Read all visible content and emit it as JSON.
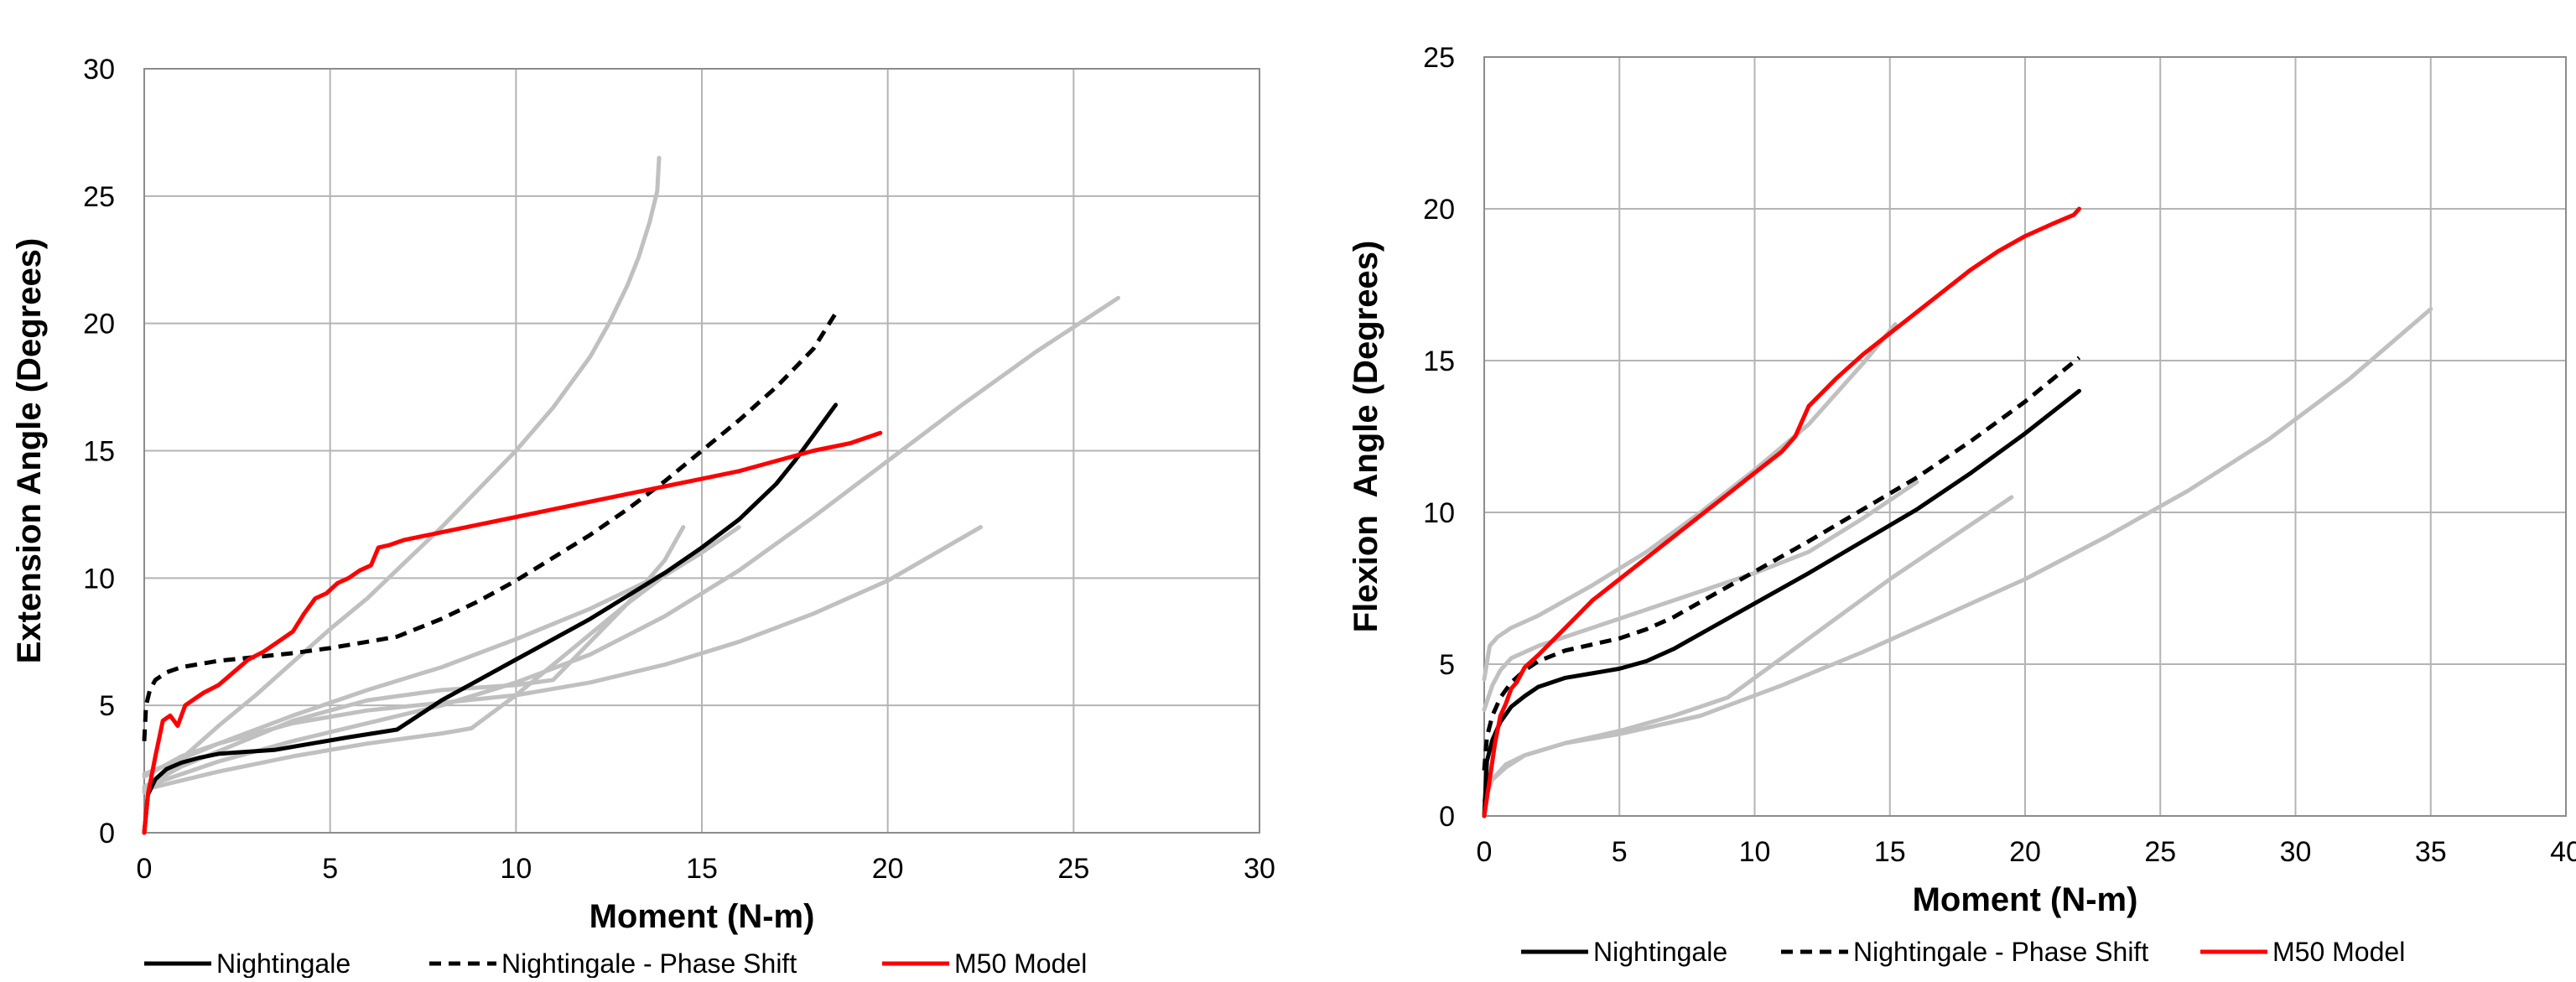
{
  "colors": {
    "nightingale": "#000000",
    "phase_shift": "#000000",
    "m50": "#ff0000",
    "specimens": "#c0c0c0",
    "grid": "#b4b4b4"
  },
  "chart_data": [
    {
      "type": "line",
      "xlabel": "Moment (N-m)",
      "ylabel": "Extension Angle (Degrees)",
      "xlim": [
        0,
        30
      ],
      "ylim": [
        0,
        30
      ],
      "x_ticks": [
        "0",
        "5",
        "10",
        "15",
        "20",
        "25",
        "30"
      ],
      "y_ticks": [
        "0",
        "5",
        "10",
        "15",
        "20",
        "25",
        "30"
      ],
      "grid": true,
      "legend_position": "bottom",
      "legend": [
        "Nightingale",
        "Nightingale - Phase Shift",
        "M50 Model"
      ],
      "series": [
        {
          "name": "Nightingale",
          "style": "solid",
          "color": "#000000",
          "x": [
            0,
            0.1,
            0.3,
            0.6,
            1,
            1.5,
            2,
            2.5,
            3.5,
            4.5,
            5.5,
            6.8,
            8,
            9,
            10,
            11,
            12,
            13,
            14,
            15,
            16,
            17,
            17.5,
            18,
            18.6
          ],
          "y": [
            0,
            1.5,
            2.1,
            2.5,
            2.75,
            2.95,
            3.1,
            3.15,
            3.25,
            3.5,
            3.75,
            4.05,
            5.2,
            6,
            6.8,
            7.6,
            8.4,
            9.3,
            10.2,
            11.2,
            12.3,
            13.7,
            14.6,
            15.6,
            16.8
          ]
        },
        {
          "name": "Nightingale - Phase Shift",
          "style": "dashed",
          "color": "#000000",
          "x": [
            0,
            0.05,
            0.15,
            0.3,
            0.6,
            1,
            2,
            3,
            4,
            5,
            6,
            6.8,
            8,
            9,
            10,
            11,
            12,
            13,
            14,
            15,
            16,
            17,
            18,
            18.6
          ],
          "y": [
            3.6,
            5.0,
            5.6,
            6.0,
            6.3,
            6.5,
            6.75,
            6.9,
            7.05,
            7.25,
            7.5,
            7.7,
            8.4,
            9.1,
            9.9,
            10.8,
            11.7,
            12.7,
            13.8,
            15.0,
            16.2,
            17.5,
            19.0,
            20.4
          ]
        },
        {
          "name": "M50 Model",
          "style": "solid",
          "color": "#ff0000",
          "x": [
            0,
            0.1,
            0.3,
            0.5,
            0.7,
            0.9,
            1.1,
            1.3,
            1.6,
            2.0,
            2.4,
            2.8,
            3.2,
            3.6,
            4.0,
            4.3,
            4.6,
            4.9,
            5.2,
            5.5,
            5.8,
            6.1,
            6.3,
            6.6,
            7,
            8,
            9,
            10,
            11,
            12,
            13,
            14,
            15,
            16,
            17,
            18,
            19,
            19.8
          ],
          "y": [
            0,
            1.5,
            3.0,
            4.4,
            4.6,
            4.2,
            5.0,
            5.2,
            5.5,
            5.8,
            6.3,
            6.8,
            7.1,
            7.5,
            7.9,
            8.6,
            9.2,
            9.4,
            9.8,
            10.0,
            10.3,
            10.5,
            11.2,
            11.3,
            11.5,
            11.8,
            12.1,
            12.4,
            12.7,
            13.0,
            13.3,
            13.6,
            13.9,
            14.2,
            14.6,
            15.0,
            15.3,
            15.7
          ]
        },
        {
          "name": "",
          "style": "solid",
          "color": "#c0c0c0",
          "x": [
            0,
            1,
            2,
            3,
            4,
            5,
            6,
            7,
            8,
            9,
            10,
            11,
            12,
            12.5,
            13,
            13.3,
            13.6,
            13.8,
            13.85
          ],
          "y": [
            1.6,
            2.9,
            4.2,
            5.4,
            6.7,
            8.0,
            9.2,
            10.6,
            12.0,
            13.5,
            15.0,
            16.7,
            18.7,
            20.0,
            21.5,
            22.6,
            24.0,
            25.2,
            26.5
          ]
        },
        {
          "name": "",
          "style": "solid",
          "color": "#c0c0c0",
          "x": [
            0,
            2,
            4,
            6,
            8,
            10,
            12,
            14,
            16,
            18,
            20,
            22,
            24,
            26.2
          ],
          "y": [
            1.8,
            2.8,
            3.6,
            4.3,
            5.0,
            5.9,
            7.0,
            8.5,
            10.3,
            12.4,
            14.6,
            16.8,
            18.9,
            21.0
          ]
        },
        {
          "name": "",
          "style": "solid",
          "color": "#c0c0c0",
          "x": [
            0,
            2,
            4,
            6,
            8,
            10,
            12,
            14,
            16,
            18,
            20,
            22.5
          ],
          "y": [
            2.3,
            3.5,
            4.3,
            4.8,
            5.1,
            5.4,
            5.9,
            6.6,
            7.5,
            8.6,
            9.9,
            12.0
          ]
        },
        {
          "name": "",
          "style": "solid",
          "color": "#c0c0c0",
          "x": [
            0,
            2,
            4,
            6,
            8,
            8.8,
            10,
            11,
            12,
            13,
            14,
            15,
            16
          ],
          "y": [
            1.7,
            2.4,
            3.0,
            3.5,
            3.9,
            4.1,
            5.4,
            6.6,
            7.8,
            9.0,
            10.1,
            11.0,
            12.0
          ]
        },
        {
          "name": "",
          "style": "solid",
          "color": "#c0c0c0",
          "x": [
            0,
            1,
            2,
            4,
            6,
            8,
            10,
            11,
            12,
            13,
            14,
            14.5
          ],
          "y": [
            1.8,
            2.6,
            3.2,
            4.4,
            5.2,
            5.6,
            5.8,
            6.0,
            7.5,
            9.0,
            10.7,
            12.0
          ]
        },
        {
          "name": "",
          "style": "solid",
          "color": "#c0c0c0",
          "x": [
            0,
            1,
            2,
            4,
            6,
            8,
            10,
            12,
            14,
            15.5
          ],
          "y": [
            2.2,
            3.0,
            3.5,
            4.6,
            5.6,
            6.5,
            7.6,
            8.8,
            10.2,
            11.5
          ]
        }
      ]
    },
    {
      "type": "line",
      "xlabel": "Moment (N-m)",
      "ylabel": "Flexion  Angle (Degrees)",
      "xlim": [
        0,
        40
      ],
      "ylim": [
        0,
        25
      ],
      "x_ticks": [
        "0",
        "5",
        "10",
        "15",
        "20",
        "25",
        "30",
        "35",
        "40"
      ],
      "y_ticks": [
        "0",
        "5",
        "10",
        "15",
        "20",
        "25"
      ],
      "grid": true,
      "legend_position": "bottom",
      "legend": [
        "Nightingale",
        "Nightingale - Phase Shift",
        "M50 Model"
      ],
      "series": [
        {
          "name": "Nightingale",
          "style": "solid",
          "color": "#000000",
          "x": [
            0,
            0.1,
            0.3,
            0.6,
            1,
            1.5,
            2,
            3,
            4,
            5,
            6,
            7,
            8,
            10,
            12,
            14,
            16,
            18,
            20,
            22
          ],
          "y": [
            0,
            1.8,
            2.5,
            3.1,
            3.6,
            3.95,
            4.25,
            4.55,
            4.7,
            4.85,
            5.1,
            5.5,
            6.0,
            7.0,
            8.0,
            9.05,
            10.1,
            11.3,
            12.6,
            14.0
          ]
        },
        {
          "name": "Nightingale - Phase Shift",
          "style": "dashed",
          "color": "#000000",
          "x": [
            0,
            0.1,
            0.3,
            0.6,
            1,
            1.5,
            2,
            3,
            4,
            5,
            6,
            7,
            8,
            10,
            12,
            14,
            16,
            18,
            20,
            22
          ],
          "y": [
            1.5,
            2.6,
            3.3,
            3.9,
            4.4,
            4.8,
            5.1,
            5.45,
            5.65,
            5.85,
            6.15,
            6.55,
            7.05,
            8.05,
            9.05,
            10.1,
            11.15,
            12.35,
            13.65,
            15.1
          ]
        },
        {
          "name": "M50 Model",
          "style": "solid",
          "color": "#ff0000",
          "x": [
            0,
            0.2,
            0.4,
            0.6,
            0.8,
            1.0,
            1.2,
            1.5,
            2,
            3,
            4,
            5,
            6,
            7,
            8,
            9,
            10,
            11,
            11.5,
            12,
            13,
            14,
            15,
            16,
            17,
            18,
            19,
            20,
            21,
            21.8,
            22
          ],
          "y": [
            0,
            1.2,
            2.4,
            3.3,
            3.7,
            4.2,
            4.4,
            4.9,
            5.3,
            6.2,
            7.1,
            7.8,
            8.5,
            9.2,
            9.9,
            10.6,
            11.3,
            12.0,
            12.5,
            13.5,
            14.4,
            15.2,
            15.9,
            16.6,
            17.3,
            18.0,
            18.6,
            19.1,
            19.5,
            19.8,
            20.0
          ]
        },
        {
          "name": "",
          "style": "solid",
          "color": "#c0c0c0",
          "x": [
            0,
            0.2,
            0.5,
            1,
            2,
            4,
            6,
            8,
            10,
            12,
            14,
            15.2
          ],
          "y": [
            4.5,
            5.6,
            5.9,
            6.2,
            6.6,
            7.6,
            8.7,
            10.0,
            11.4,
            12.9,
            14.9,
            16.2
          ]
        },
        {
          "name": "",
          "style": "solid",
          "color": "#c0c0c0",
          "x": [
            0,
            0.3,
            0.8,
            1.5,
            3,
            5,
            7,
            9,
            11,
            13,
            15,
            17,
            19.5
          ],
          "y": [
            0.5,
            1.2,
            1.7,
            2.0,
            2.4,
            2.8,
            3.3,
            3.9,
            5.2,
            6.5,
            7.8,
            9.0,
            10.5
          ]
        },
        {
          "name": "",
          "style": "solid",
          "color": "#c0c0c0",
          "x": [
            0,
            0.3,
            0.6,
            1,
            2,
            3,
            5,
            7,
            10,
            12,
            14,
            16
          ],
          "y": [
            3.5,
            4.3,
            4.8,
            5.2,
            5.6,
            5.9,
            6.5,
            7.1,
            8.0,
            8.7,
            9.8,
            11.0
          ]
        },
        {
          "name": "",
          "style": "solid",
          "color": "#c0c0c0",
          "x": [
            0,
            0.3,
            0.8,
            1.5,
            3,
            5,
            8,
            11,
            14,
            17,
            20,
            23,
            26,
            29,
            32,
            35
          ],
          "y": [
            0.5,
            1.2,
            1.6,
            2.0,
            2.4,
            2.7,
            3.3,
            4.3,
            5.4,
            6.6,
            7.8,
            9.2,
            10.7,
            12.4,
            14.4,
            16.7
          ]
        }
      ]
    }
  ]
}
